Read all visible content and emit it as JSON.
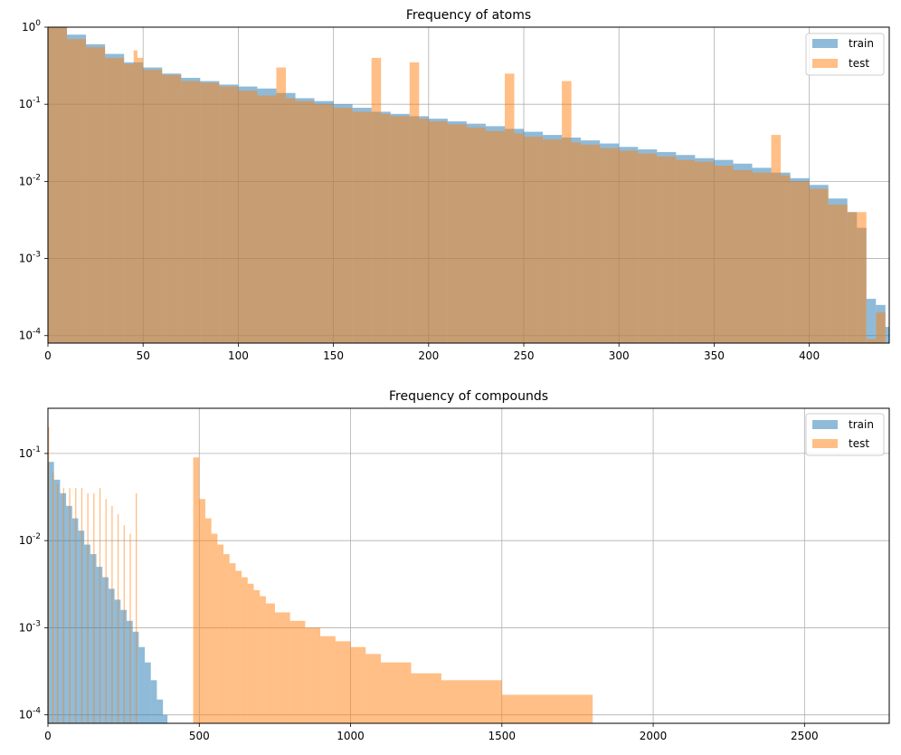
{
  "chart_data": [
    {
      "type": "bar",
      "subtype": "histogram",
      "title": "Frequency of atoms",
      "xlabel": "",
      "ylabel": "",
      "yscale": "log",
      "xlim": [
        0,
        442
      ],
      "ylim": [
        8e-05,
        1
      ],
      "grid": true,
      "legend_position": "top-right",
      "xticks": [
        0,
        50,
        100,
        150,
        200,
        250,
        300,
        350,
        400
      ],
      "xtick_labels": [
        "0",
        "50",
        "100",
        "150",
        "200",
        "250",
        "300",
        "350",
        "400"
      ],
      "yticks": [
        0.0001,
        0.001,
        0.01,
        0.1,
        1
      ],
      "ytick_labels": [
        "10^-4",
        "10^-3",
        "10^-2",
        "10^-1",
        "10^0"
      ],
      "series": [
        {
          "name": "train",
          "color": "#1f77b4",
          "alpha": 0.5,
          "bins": [
            [
              0,
              10,
              1
            ],
            [
              10,
              20,
              0.8
            ],
            [
              20,
              30,
              0.6
            ],
            [
              30,
              40,
              0.45
            ],
            [
              40,
              50,
              0.35
            ],
            [
              50,
              60,
              0.3
            ],
            [
              60,
              70,
              0.25
            ],
            [
              70,
              80,
              0.22
            ],
            [
              80,
              90,
              0.2
            ],
            [
              90,
              100,
              0.18
            ],
            [
              100,
              110,
              0.17
            ],
            [
              110,
              120,
              0.16
            ],
            [
              120,
              130,
              0.14
            ],
            [
              130,
              140,
              0.12
            ],
            [
              140,
              150,
              0.11
            ],
            [
              150,
              160,
              0.1
            ],
            [
              160,
              170,
              0.09
            ],
            [
              170,
              180,
              0.08
            ],
            [
              180,
              190,
              0.075
            ],
            [
              190,
              200,
              0.07
            ],
            [
              200,
              210,
              0.065
            ],
            [
              210,
              220,
              0.06
            ],
            [
              220,
              230,
              0.056
            ],
            [
              230,
              240,
              0.052
            ],
            [
              240,
              250,
              0.048
            ],
            [
              250,
              260,
              0.044
            ],
            [
              260,
              270,
              0.04
            ],
            [
              270,
              280,
              0.037
            ],
            [
              280,
              290,
              0.034
            ],
            [
              290,
              300,
              0.031
            ],
            [
              300,
              310,
              0.028
            ],
            [
              310,
              320,
              0.026
            ],
            [
              320,
              330,
              0.024
            ],
            [
              330,
              340,
              0.022
            ],
            [
              340,
              350,
              0.02
            ],
            [
              350,
              360,
              0.019
            ],
            [
              360,
              370,
              0.017
            ],
            [
              370,
              380,
              0.015
            ],
            [
              380,
              390,
              0.013
            ],
            [
              390,
              400,
              0.011
            ],
            [
              400,
              410,
              0.009
            ],
            [
              410,
              420,
              0.006
            ],
            [
              420,
              425,
              0.004
            ],
            [
              425,
              430,
              0.0025
            ],
            [
              430,
              435,
              0.0003
            ],
            [
              435,
              440,
              0.00025
            ],
            [
              440,
              442,
              0.00013
            ]
          ]
        },
        {
          "name": "test",
          "color": "#ff7f0e",
          "alpha": 0.5,
          "bins": [
            [
              0,
              10,
              1
            ],
            [
              10,
              20,
              0.7
            ],
            [
              20,
              30,
              0.55
            ],
            [
              30,
              40,
              0.4
            ],
            [
              40,
              45,
              0.33
            ],
            [
              45,
              47,
              0.5
            ],
            [
              47,
              50,
              0.4
            ],
            [
              50,
              60,
              0.28
            ],
            [
              60,
              70,
              0.24
            ],
            [
              70,
              80,
              0.2
            ],
            [
              80,
              90,
              0.19
            ],
            [
              90,
              100,
              0.17
            ],
            [
              100,
              110,
              0.15
            ],
            [
              110,
              120,
              0.13
            ],
            [
              120,
              125,
              0.3
            ],
            [
              125,
              130,
              0.12
            ],
            [
              130,
              140,
              0.11
            ],
            [
              140,
              150,
              0.1
            ],
            [
              150,
              160,
              0.09
            ],
            [
              160,
              170,
              0.08
            ],
            [
              170,
              175,
              0.4
            ],
            [
              175,
              180,
              0.075
            ],
            [
              180,
              190,
              0.07
            ],
            [
              190,
              195,
              0.35
            ],
            [
              195,
              200,
              0.065
            ],
            [
              200,
              210,
              0.06
            ],
            [
              210,
              220,
              0.055
            ],
            [
              220,
              230,
              0.05
            ],
            [
              230,
              240,
              0.045
            ],
            [
              240,
              245,
              0.25
            ],
            [
              245,
              250,
              0.042
            ],
            [
              250,
              260,
              0.038
            ],
            [
              260,
              270,
              0.035
            ],
            [
              270,
              275,
              0.2
            ],
            [
              275,
              280,
              0.032
            ],
            [
              280,
              290,
              0.03
            ],
            [
              290,
              300,
              0.027
            ],
            [
              300,
              310,
              0.025
            ],
            [
              310,
              320,
              0.023
            ],
            [
              320,
              330,
              0.021
            ],
            [
              330,
              340,
              0.019
            ],
            [
              340,
              350,
              0.018
            ],
            [
              350,
              360,
              0.016
            ],
            [
              360,
              370,
              0.014
            ],
            [
              370,
              380,
              0.013
            ],
            [
              380,
              385,
              0.04
            ],
            [
              385,
              390,
              0.012
            ],
            [
              390,
              400,
              0.01
            ],
            [
              400,
              410,
              0.008
            ],
            [
              410,
              420,
              0.005
            ],
            [
              420,
              430,
              0.004
            ],
            [
              430,
              435,
              9e-05
            ],
            [
              435,
              440,
              0.0002
            ]
          ]
        }
      ]
    },
    {
      "type": "bar",
      "subtype": "histogram",
      "title": "Frequency of compounds",
      "xlabel": "",
      "ylabel": "",
      "yscale": "log",
      "xlim": [
        0,
        2780
      ],
      "ylim": [
        8e-05,
        0.33
      ],
      "grid": true,
      "legend_position": "top-right",
      "xticks": [
        0,
        500,
        1000,
        1500,
        2000,
        2500
      ],
      "xtick_labels": [
        "0",
        "500",
        "1000",
        "1500",
        "2000",
        "2500"
      ],
      "yticks": [
        0.0001,
        0.001,
        0.01,
        0.1
      ],
      "ytick_labels": [
        "10^-4",
        "10^-3",
        "10^-2",
        "10^-1"
      ],
      "series": [
        {
          "name": "train",
          "color": "#1f77b4",
          "alpha": 0.5,
          "bins": [
            [
              0,
              20,
              0.08
            ],
            [
              20,
              40,
              0.05
            ],
            [
              40,
              60,
              0.035
            ],
            [
              60,
              80,
              0.025
            ],
            [
              80,
              100,
              0.018
            ],
            [
              100,
              120,
              0.013
            ],
            [
              120,
              140,
              0.009
            ],
            [
              140,
              160,
              0.007
            ],
            [
              160,
              180,
              0.005
            ],
            [
              180,
              200,
              0.0038
            ],
            [
              200,
              220,
              0.0028
            ],
            [
              220,
              240,
              0.0021
            ],
            [
              240,
              260,
              0.0016
            ],
            [
              260,
              280,
              0.0012
            ],
            [
              280,
              300,
              0.0009
            ],
            [
              300,
              320,
              0.0006
            ],
            [
              320,
              340,
              0.0004
            ],
            [
              340,
              360,
              0.00025
            ],
            [
              360,
              380,
              0.00015
            ],
            [
              380,
              395,
              0.0001
            ]
          ]
        },
        {
          "name": "test",
          "color": "#ff7f0e",
          "alpha": 0.5,
          "bins": [
            [
              480,
              500,
              0.09
            ],
            [
              500,
              520,
              0.03
            ],
            [
              520,
              540,
              0.018
            ],
            [
              540,
              560,
              0.012
            ],
            [
              560,
              580,
              0.009
            ],
            [
              580,
              600,
              0.007
            ],
            [
              600,
              620,
              0.0055
            ],
            [
              620,
              640,
              0.0045
            ],
            [
              640,
              660,
              0.0038
            ],
            [
              660,
              680,
              0.0032
            ],
            [
              680,
              700,
              0.0027
            ],
            [
              700,
              720,
              0.0023
            ],
            [
              720,
              750,
              0.0019
            ],
            [
              750,
              800,
              0.0015
            ],
            [
              800,
              850,
              0.0012
            ],
            [
              850,
              900,
              0.001
            ],
            [
              900,
              950,
              0.0008
            ],
            [
              950,
              1000,
              0.0007
            ],
            [
              1000,
              1050,
              0.0006
            ],
            [
              1050,
              1100,
              0.0005
            ],
            [
              1100,
              1200,
              0.0004
            ],
            [
              1200,
              1300,
              0.0003
            ],
            [
              1300,
              1500,
              0.00025
            ],
            [
              1500,
              1800,
              0.00017
            ],
            [
              1800,
              2780,
              8e-05
            ]
          ],
          "spikes": [
            [
              0,
              0.2
            ],
            [
              15,
              0.06
            ],
            [
              30,
              0.045
            ],
            [
              50,
              0.04
            ],
            [
              70,
              0.04
            ],
            [
              90,
              0.04
            ],
            [
              110,
              0.04
            ],
            [
              130,
              0.035
            ],
            [
              150,
              0.035
            ],
            [
              170,
              0.04
            ],
            [
              190,
              0.03
            ],
            [
              210,
              0.025
            ],
            [
              230,
              0.02
            ],
            [
              250,
              0.015
            ],
            [
              270,
              0.012
            ],
            [
              290,
              0.035
            ]
          ]
        }
      ]
    }
  ]
}
